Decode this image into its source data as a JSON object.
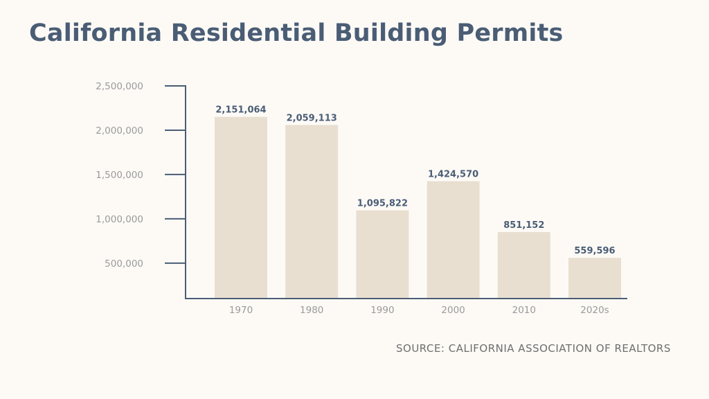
{
  "chart_data": {
    "type": "bar",
    "title": "California Residential Building Permits",
    "categories": [
      "1970",
      "1980",
      "1990",
      "2000",
      "2010",
      "2020s"
    ],
    "values": [
      2151064,
      2059113,
      1095822,
      1424570,
      851152,
      559596
    ],
    "data_labels": [
      "2,151,064",
      "2,059,113",
      "1,095,822",
      "1,424,570",
      "851,152",
      "559,596"
    ],
    "y_ticks": [
      500000,
      1000000,
      1500000,
      2000000,
      2500000
    ],
    "y_tick_labels": [
      "500,000",
      "1,000,000",
      "1,500,000",
      "2,000,000",
      "2,500,000"
    ],
    "ylim": [
      100000,
      2500000
    ],
    "xlabel": "",
    "ylabel": "",
    "grid": false,
    "colors": {
      "bar": "#e9dfd1",
      "axis": "#4a5d75",
      "title": "#4a5d75",
      "data_label": "#4a5d75",
      "tick_label": "#9a9a9a",
      "background": "#fdfaf6"
    }
  },
  "source": "SOURCE: CALIFORNIA ASSOCIATION OF REALTORS"
}
